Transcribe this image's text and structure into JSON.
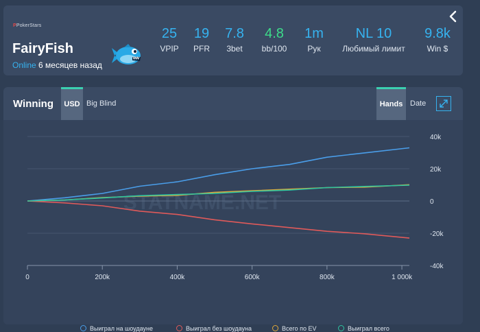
{
  "profile": {
    "site_logo": "PokerStars",
    "player_name": "FairyFish",
    "status_online": "Online",
    "status_when": "6 месяцев назад",
    "avatar_icon": "piranha-fish-icon",
    "stats": [
      {
        "value": "25",
        "label": "VPIP",
        "color": "#36b3f0"
      },
      {
        "value": "19",
        "label": "PFR",
        "color": "#36b3f0"
      },
      {
        "value": "7.8",
        "label": "3bet",
        "color": "#36b3f0"
      },
      {
        "value": "4.8",
        "label": "bb/100",
        "color": "#3ddc8a"
      },
      {
        "value": "1m",
        "label": "Рук",
        "color": "#36b3f0"
      },
      {
        "value": "NL 10",
        "label": "Любимый лимит",
        "color": "#36b3f0"
      },
      {
        "value": "9.8k",
        "label": "Win $",
        "color": "#36b3f0"
      }
    ]
  },
  "chart_header": {
    "title": "Winning",
    "tab_usd": "USD",
    "tab_bb": "Big Blind",
    "tab_hands": "Hands",
    "tab_date": "Date",
    "expand_icon": "expand-icon"
  },
  "watermark": "STATNAME.NET",
  "chart_data": {
    "type": "line",
    "xlabel": "",
    "ylabel": "",
    "xlim": [
      0,
      1020000
    ],
    "ylim": [
      -40000,
      40000
    ],
    "x_ticks": [
      0,
      200000,
      400000,
      600000,
      800000,
      1000000
    ],
    "x_tick_labels": [
      "0",
      "200k",
      "400k",
      "600k",
      "800k",
      "1 000k"
    ],
    "y_ticks": [
      40000,
      20000,
      0,
      -20000,
      -40000
    ],
    "y_tick_labels": [
      "40k",
      "20k",
      "0",
      "-20k",
      "-40k"
    ],
    "grid": true,
    "legend_position": "bottom",
    "x": [
      0,
      100000,
      200000,
      300000,
      400000,
      500000,
      600000,
      700000,
      800000,
      900000,
      1020000
    ],
    "series": [
      {
        "name": "Выиграл на шоудауне",
        "color": "#4a9eea",
        "values": [
          0,
          2000,
          5000,
          9000,
          12000,
          16000,
          20000,
          23000,
          27000,
          30000,
          33000
        ]
      },
      {
        "name": "Выиграл без шоудауна",
        "color": "#e05a5a",
        "values": [
          0,
          -1500,
          -3000,
          -6000,
          -8500,
          -11500,
          -14500,
          -16500,
          -18500,
          -20500,
          -23000
        ]
      },
      {
        "name": "Всего по EV",
        "color": "#e0a93a",
        "values": [
          0,
          800,
          1800,
          3000,
          3800,
          5200,
          6500,
          7000,
          8300,
          8900,
          10100
        ]
      },
      {
        "name": "Выиграл всего",
        "color": "#2ec4a0",
        "values": [
          0,
          500,
          2000,
          3000,
          4000,
          5000,
          5800,
          6900,
          8000,
          9000,
          9800
        ]
      }
    ]
  }
}
